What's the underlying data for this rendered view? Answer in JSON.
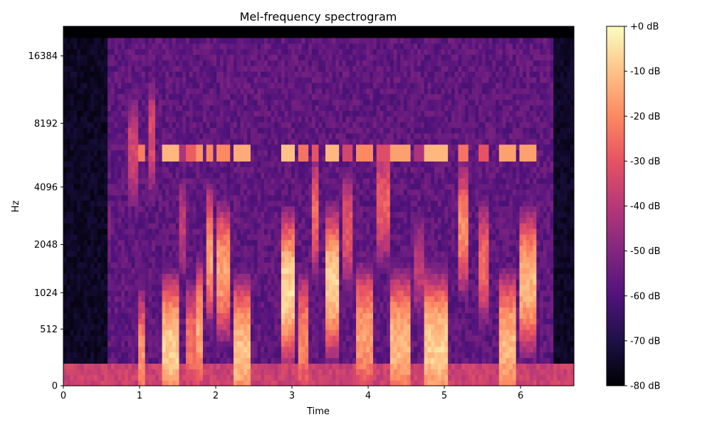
{
  "chart_data": {
    "type": "heatmap",
    "title": "Mel-frequency spectrogram",
    "xlabel": "Time",
    "ylabel": "Hz",
    "x_range": [
      0,
      6.7
    ],
    "x_ticks": [
      0,
      1,
      2,
      3,
      4,
      5,
      6
    ],
    "y_scale": "mel",
    "y_range": [
      0,
      22050
    ],
    "y_ticks": [
      0,
      512,
      1024,
      2048,
      4096,
      8192,
      16384
    ],
    "colormap": "magma",
    "colorbar": {
      "range_db": [
        -80,
        0
      ],
      "ticks": [
        0,
        -10,
        -20,
        -30,
        -40,
        -50,
        -60,
        -70,
        -80
      ],
      "tick_labels": [
        "+0 dB",
        "-10 dB",
        "-20 dB",
        "-30 dB",
        "-40 dB",
        "-50 dB",
        "-60 dB",
        "-70 dB",
        "-80 dB"
      ],
      "stops": [
        "#000004",
        "#1d1147",
        "#51127c",
        "#822681",
        "#b73779",
        "#e75263",
        "#fc8961",
        "#fec287",
        "#fcfdbf"
      ]
    },
    "segments": [
      {
        "start": 0.58,
        "end": 0.64,
        "level_db": -48,
        "f_peak": 2600
      },
      {
        "start": 0.85,
        "end": 0.98,
        "level_db": -30,
        "f_peak": 6000
      },
      {
        "start": 1.0,
        "end": 1.08,
        "level_db": -14,
        "f_peak": 220
      },
      {
        "start": 1.1,
        "end": 1.2,
        "level_db": -28,
        "f_peak": 7000
      },
      {
        "start": 1.28,
        "end": 1.5,
        "level_db": -4,
        "f_peak": 300
      },
      {
        "start": 1.52,
        "end": 1.6,
        "level_db": -34,
        "f_peak": 2500
      },
      {
        "start": 1.63,
        "end": 1.72,
        "level_db": -20,
        "f_peak": 350
      },
      {
        "start": 1.74,
        "end": 1.82,
        "level_db": -10,
        "f_peak": 500
      },
      {
        "start": 1.86,
        "end": 1.98,
        "level_db": -12,
        "f_peak": 1800
      },
      {
        "start": 2.02,
        "end": 2.18,
        "level_db": -12,
        "f_peak": 1400
      },
      {
        "start": 2.22,
        "end": 2.45,
        "level_db": -6,
        "f_peak": 280
      },
      {
        "start": 2.55,
        "end": 2.62,
        "level_db": -50,
        "f_peak": 2000
      },
      {
        "start": 2.85,
        "end": 3.05,
        "level_db": -2,
        "f_peak": 1100
      },
      {
        "start": 3.1,
        "end": 3.22,
        "level_db": -16,
        "f_peak": 400
      },
      {
        "start": 3.25,
        "end": 3.35,
        "level_db": -22,
        "f_peak": 3000
      },
      {
        "start": 3.45,
        "end": 3.6,
        "level_db": -4,
        "f_peak": 1200
      },
      {
        "start": 3.68,
        "end": 3.78,
        "level_db": -26,
        "f_peak": 2500
      },
      {
        "start": 3.85,
        "end": 4.05,
        "level_db": -12,
        "f_peak": 450
      },
      {
        "start": 4.12,
        "end": 4.28,
        "level_db": -24,
        "f_peak": 3400
      },
      {
        "start": 4.3,
        "end": 4.55,
        "level_db": -8,
        "f_peak": 350
      },
      {
        "start": 4.62,
        "end": 4.72,
        "level_db": -34,
        "f_peak": 1500
      },
      {
        "start": 4.75,
        "end": 5.05,
        "level_db": -4,
        "f_peak": 320
      },
      {
        "start": 5.2,
        "end": 5.32,
        "level_db": -16,
        "f_peak": 2500
      },
      {
        "start": 5.45,
        "end": 5.6,
        "level_db": -22,
        "f_peak": 1600
      },
      {
        "start": 5.7,
        "end": 5.92,
        "level_db": -8,
        "f_peak": 350
      },
      {
        "start": 5.98,
        "end": 6.2,
        "level_db": -8,
        "f_peak": 1200
      },
      {
        "start": 6.25,
        "end": 6.35,
        "level_db": -58,
        "f_peak": 2600
      }
    ]
  }
}
